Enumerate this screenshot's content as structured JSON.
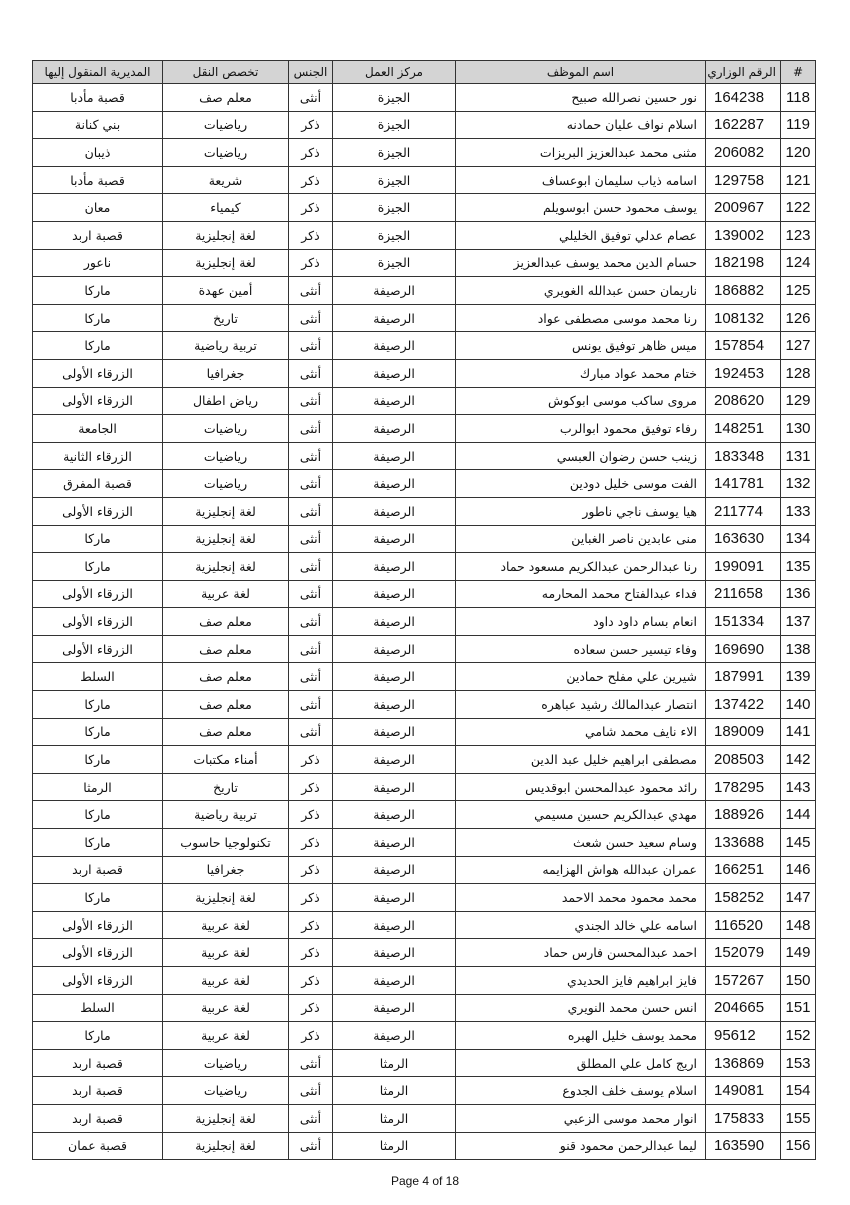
{
  "table": {
    "header": [
      "#",
      "الرقم الوزاري",
      "اسم الموظف",
      "مركز العمل",
      "الجنس",
      "تخصص النقل",
      "المديرية المنقول إليها"
    ],
    "rows": [
      [
        118,
        164238,
        "نور حسين نصرالله صبيح",
        "الجيزة",
        "أنثى",
        "معلم صف",
        "قصبة مأدبا"
      ],
      [
        119,
        162287,
        "اسلام نواف عليان حمادنه",
        "الجيزة",
        "ذكر",
        "رياضيات",
        "بني كنانة"
      ],
      [
        120,
        206082,
        "مثنى محمد عبدالعزيز البريزات",
        "الجيزة",
        "ذكر",
        "رياضيات",
        "ذيبان"
      ],
      [
        121,
        129758,
        "اسامه ذياب سليمان ابوعساف",
        "الجيزة",
        "ذكر",
        "شريعة",
        "قصبة مأدبا"
      ],
      [
        122,
        200967,
        "يوسف محمود حسن ابوسويلم",
        "الجيزة",
        "ذكر",
        "كيمياء",
        "معان"
      ],
      [
        123,
        139002,
        "عصام عدلي توفيق الخليلي",
        "الجيزة",
        "ذكر",
        "لغة إنجليزية",
        "قصبة اربد"
      ],
      [
        124,
        182198,
        "حسام الدين محمد يوسف عبدالعزيز",
        "الجيزة",
        "ذكر",
        "لغة إنجليزية",
        "ناعور"
      ],
      [
        125,
        186882,
        "ناريمان حسن عبدالله الغويري",
        "الرصيفة",
        "أنثى",
        "أمين عهدة",
        "ماركا"
      ],
      [
        126,
        108132,
        "رنا محمد موسى مصطفى عواد",
        "الرصيفة",
        "أنثى",
        "تاريخ",
        "ماركا"
      ],
      [
        127,
        157854,
        "ميس ظاهر توفيق يونس",
        "الرصيفة",
        "أنثى",
        "تربية رياضية",
        "ماركا"
      ],
      [
        128,
        192453,
        "ختام محمد عواد مبارك",
        "الرصيفة",
        "أنثى",
        "جغرافيا",
        "الزرقاء الأولى"
      ],
      [
        129,
        208620,
        "مروى ساكب موسى ابوكوش",
        "الرصيفة",
        "أنثى",
        "رياض اطفال",
        "الزرقاء الأولى"
      ],
      [
        130,
        148251,
        "رفاء توفيق محمود ابوالرب",
        "الرصيفة",
        "أنثى",
        "رياضيات",
        "الجامعة"
      ],
      [
        131,
        183348,
        "زينب حسن رضوان العبسي",
        "الرصيفة",
        "أنثى",
        "رياضيات",
        "الزرقاء الثانية"
      ],
      [
        132,
        141781,
        "الفت موسى خليل دودين",
        "الرصيفة",
        "أنثى",
        "رياضيات",
        "قصبة المفرق"
      ],
      [
        133,
        211774,
        "هيا يوسف ناجي ناطور",
        "الرصيفة",
        "أنثى",
        "لغة إنجليزية",
        "الزرقاء الأولى"
      ],
      [
        134,
        163630,
        "منى عابدين ناصر الغباين",
        "الرصيفة",
        "أنثى",
        "لغة إنجليزية",
        "ماركا"
      ],
      [
        135,
        199091,
        "رنا عبدالرحمن عبدالكريم مسعود حماد",
        "الرصيفة",
        "أنثى",
        "لغة إنجليزية",
        "ماركا"
      ],
      [
        136,
        211658,
        "فداء عبدالفتاح محمد المحارمه",
        "الرصيفة",
        "أنثى",
        "لغة عربية",
        "الزرقاء الأولى"
      ],
      [
        137,
        151334,
        "انعام بسام داود داود",
        "الرصيفة",
        "أنثى",
        "معلم صف",
        "الزرقاء الأولى"
      ],
      [
        138,
        169690,
        "وفاء تيسير حسن سعاده",
        "الرصيفة",
        "أنثى",
        "معلم صف",
        "الزرقاء الأولى"
      ],
      [
        139,
        187991,
        "شيرين علي مفلح حمادين",
        "الرصيفة",
        "أنثى",
        "معلم صف",
        "السلط"
      ],
      [
        140,
        137422,
        "انتصار عبدالمالك رشيد عباهره",
        "الرصيفة",
        "أنثى",
        "معلم صف",
        "ماركا"
      ],
      [
        141,
        189009,
        "الاء نايف محمد شامي",
        "الرصيفة",
        "أنثى",
        "معلم صف",
        "ماركا"
      ],
      [
        142,
        208503,
        "مصطفى ابراهيم خليل عبد الدين",
        "الرصيفة",
        "ذكر",
        "أمناء مكتبات",
        "ماركا"
      ],
      [
        143,
        178295,
        "رائد محمود عبدالمحسن ابوقديس",
        "الرصيفة",
        "ذكر",
        "تاريخ",
        "الرمثا"
      ],
      [
        144,
        188926,
        "مهدي عبدالكريم حسين مسيمي",
        "الرصيفة",
        "ذكر",
        "تربية رياضية",
        "ماركا"
      ],
      [
        145,
        133688,
        "وسام سعيد حسن شعث",
        "الرصيفة",
        "ذكر",
        "تكنولوجيا حاسوب",
        "ماركا"
      ],
      [
        146,
        166251,
        "عمران عبدالله هواش الهزايمه",
        "الرصيفة",
        "ذكر",
        "جغرافيا",
        "قصبة اربد"
      ],
      [
        147,
        158252,
        "محمد محمود محمد الاحمد",
        "الرصيفة",
        "ذكر",
        "لغة إنجليزية",
        "ماركا"
      ],
      [
        148,
        116520,
        "اسامه علي خالد الجندي",
        "الرصيفة",
        "ذكر",
        "لغة عربية",
        "الزرقاء الأولى"
      ],
      [
        149,
        152079,
        "احمد عبدالمحسن فارس حماد",
        "الرصيفة",
        "ذكر",
        "لغة عربية",
        "الزرقاء الأولى"
      ],
      [
        150,
        157267,
        "فايز ابراهيم فايز الحديدي",
        "الرصيفة",
        "ذكر",
        "لغة عربية",
        "الزرقاء الأولى"
      ],
      [
        151,
        204665,
        "انس حسن محمد النويري",
        "الرصيفة",
        "ذكر",
        "لغة عربية",
        "السلط"
      ],
      [
        152,
        95612,
        "محمد يوسف خليل الهبره",
        "الرصيفة",
        "ذكر",
        "لغة عربية",
        "ماركا"
      ],
      [
        153,
        136869,
        "اريج كامل علي المطلق",
        "الرمثا",
        "أنثى",
        "رياضيات",
        "قصبة اربد"
      ],
      [
        154,
        149081,
        "اسلام يوسف خلف الجدوع",
        "الرمثا",
        "أنثى",
        "رياضيات",
        "قصبة اربد"
      ],
      [
        155,
        175833,
        "انوار محمد موسى الزعبي",
        "الرمثا",
        "أنثى",
        "لغة إنجليزية",
        "قصبة اربد"
      ],
      [
        156,
        163590,
        "ليما عبدالرحمن محمود قنو",
        "الرمثا",
        "أنثى",
        "لغة إنجليزية",
        "قصبة عمان"
      ]
    ]
  },
  "footer": "Page 4 of 18"
}
